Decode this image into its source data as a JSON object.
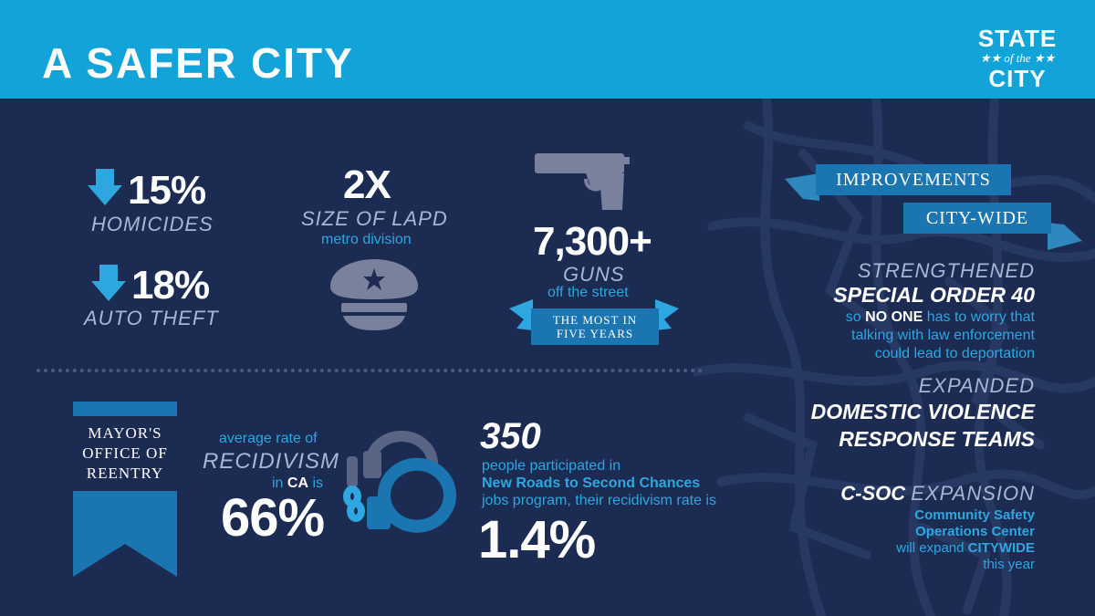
{
  "header": {
    "title": "A SAFER CITY",
    "logo": {
      "line1": "STATE",
      "line2": "★★ of the ★★",
      "line3": "CITY"
    }
  },
  "colors": {
    "header": "#12a3d9",
    "background": "#1b2b52",
    "accent": "#2ea7e0",
    "banner": "#1b75b0",
    "muted": "#a9b6d3"
  },
  "stats": {
    "homicides": {
      "value": "15%",
      "label": "HOMICIDES",
      "icon": "down-arrow-icon"
    },
    "auto_theft": {
      "value": "18%",
      "label": "AUTO THEFT",
      "icon": "down-arrow-icon"
    },
    "lapd": {
      "value": "2X",
      "label": "SIZE OF LAPD",
      "sub": "metro division",
      "icon": "police-cap-icon"
    },
    "guns": {
      "value": "7,300+",
      "label": "GUNS",
      "sub": "off the street",
      "banner_line1": "THE MOST IN",
      "banner_line2": "FIVE YEARS",
      "icon": "handgun-icon"
    }
  },
  "reentry": {
    "banner_line1": "MAYOR'S",
    "banner_line2": "OFFICE OF",
    "banner_line3": "REENTRY",
    "avg_text": "average rate of",
    "recidivism": "RECIDIVISM",
    "in_text": "in",
    "ca": "CA",
    "is_text": "is",
    "rate": "66%",
    "icon": "handcuffs-icon",
    "participants": "350",
    "people_text": "people participated in",
    "program": "New Roads to Second Chances",
    "jobs_text": "jobs program, their recidivism rate is",
    "program_rate": "1.4%"
  },
  "improvements": {
    "banner1": "IMPROVEMENTS",
    "banner2": "CITY-WIDE",
    "so40": {
      "line1": "STRENGTHENED",
      "line2": "SPECIAL ORDER 40",
      "so": "so",
      "no_one": "NO ONE",
      "rest1": "has to worry that",
      "line4": "talking with law enforcement",
      "line5": "could lead to deportation"
    },
    "dv": {
      "line1": "EXPANDED",
      "line2": "DOMESTIC VIOLENCE",
      "line3": "RESPONSE TEAMS"
    },
    "csoc": {
      "title_bold": "C-SOC",
      "title_rest": "EXPANSION",
      "line2": "Community Safety",
      "line3": "Operations Center",
      "will": "will expand",
      "citywide": "CITYWIDE",
      "this_year": "this year"
    }
  }
}
